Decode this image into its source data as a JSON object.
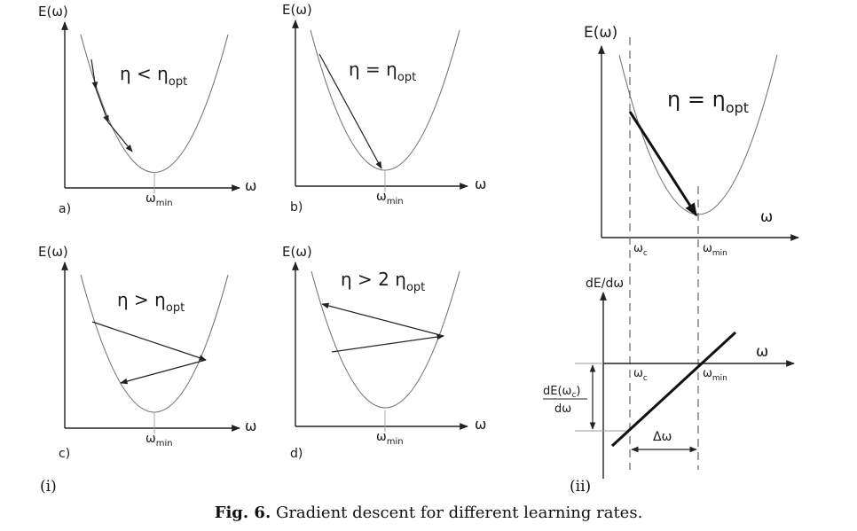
{
  "labels": {
    "y_axis": "E(ω)",
    "x_axis": "ω",
    "omega_base": "ω",
    "min_sub": "min",
    "c_sub": "c",
    "eta": "η",
    "opt_sub": "opt",
    "less_than": " < ",
    "equals": " = ",
    "greater_than": " > ",
    "greater_than_two": " > 2 ",
    "deriv_axis": "dE/dω",
    "deriv_num_prefix": "dE(ω",
    "deriv_num_suffix": ")",
    "deriv_den": "dω",
    "delta_omega": "Δω"
  },
  "panels": {
    "a": {
      "tag": "a)"
    },
    "b": {
      "tag": "b)"
    },
    "c": {
      "tag": "c)"
    },
    "d": {
      "tag": "d)"
    }
  },
  "groups": {
    "left": "(i)",
    "right": "(ii)"
  },
  "caption": {
    "label": "Fig. 6.",
    "text": " Gradient descent for different learning rates."
  }
}
